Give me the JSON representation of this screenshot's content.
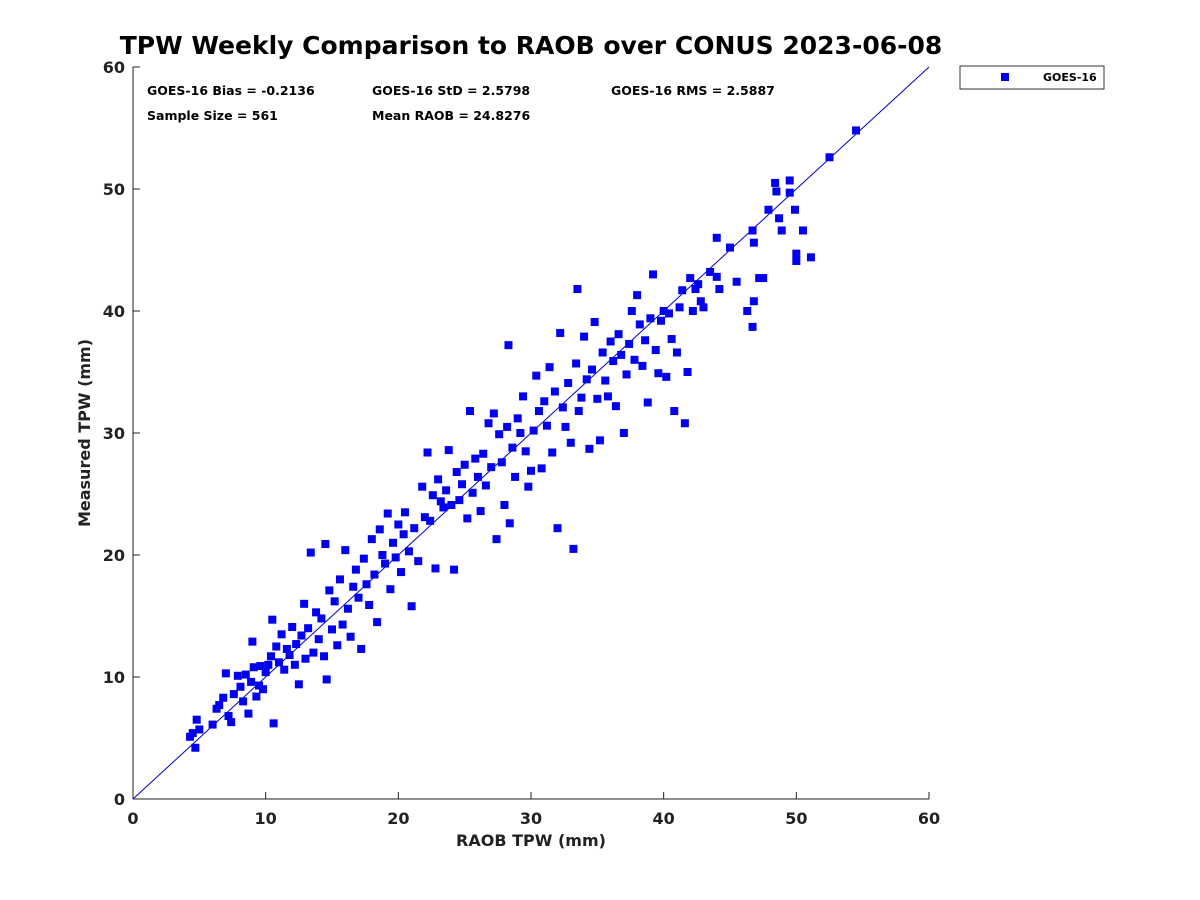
{
  "chart_data": {
    "type": "scatter",
    "title": "TPW Weekly Comparison to RAOB over CONUS 2023-06-08",
    "xlabel": "RAOB TPW (mm)",
    "ylabel": "Measured TPW (mm)",
    "xlim": [
      0,
      60
    ],
    "ylim": [
      0,
      60
    ],
    "xticks": [
      "0",
      "10",
      "20",
      "30",
      "40",
      "50",
      "60"
    ],
    "yticks": [
      "0",
      "10",
      "20",
      "30",
      "40",
      "50",
      "60"
    ],
    "reference_line": "1:1",
    "legend": {
      "position": "outside-top-right",
      "entries": [
        "GOES-16"
      ]
    },
    "stats": {
      "bias": "GOES-16 Bias = -0.2136",
      "std": "GOES-16 StD = 2.5798",
      "rms": "GOES-16 RMS = 2.5887",
      "sample": "Sample Size = 561",
      "mean": "Mean RAOB = 24.8276"
    },
    "colors": {
      "series": "#0000ee",
      "line": "#0000cc"
    },
    "series": [
      {
        "name": "GOES-16",
        "points": [
          [
            4.3,
            5.1
          ],
          [
            4.5,
            5.4
          ],
          [
            4.8,
            6.5
          ],
          [
            5.0,
            5.7
          ],
          [
            4.7,
            4.2
          ],
          [
            6.0,
            6.1
          ],
          [
            6.3,
            7.4
          ],
          [
            6.5,
            7.7
          ],
          [
            6.8,
            8.3
          ],
          [
            7.0,
            10.3
          ],
          [
            7.2,
            6.8
          ],
          [
            7.4,
            6.3
          ],
          [
            7.6,
            8.6
          ],
          [
            7.9,
            10.1
          ],
          [
            8.1,
            9.2
          ],
          [
            8.3,
            8.0
          ],
          [
            8.5,
            10.2
          ],
          [
            8.7,
            7.0
          ],
          [
            8.9,
            9.6
          ],
          [
            9.0,
            12.9
          ],
          [
            9.1,
            10.8
          ],
          [
            9.3,
            8.4
          ],
          [
            9.5,
            9.3
          ],
          [
            9.6,
            10.9
          ],
          [
            9.8,
            9.0
          ],
          [
            10.0,
            10.4
          ],
          [
            10.2,
            11.0
          ],
          [
            10.4,
            11.7
          ],
          [
            10.5,
            14.7
          ],
          [
            10.6,
            6.2
          ],
          [
            10.8,
            12.5
          ],
          [
            11.0,
            11.2
          ],
          [
            11.2,
            13.5
          ],
          [
            11.4,
            10.6
          ],
          [
            11.6,
            12.3
          ],
          [
            11.8,
            11.8
          ],
          [
            12.0,
            14.1
          ],
          [
            12.2,
            11.0
          ],
          [
            12.3,
            12.7
          ],
          [
            12.5,
            9.4
          ],
          [
            12.7,
            13.4
          ],
          [
            12.9,
            16.0
          ],
          [
            13.0,
            11.5
          ],
          [
            13.2,
            14.0
          ],
          [
            13.4,
            20.2
          ],
          [
            13.6,
            12.0
          ],
          [
            13.8,
            15.3
          ],
          [
            14.0,
            13.1
          ],
          [
            14.2,
            14.8
          ],
          [
            14.4,
            11.7
          ],
          [
            14.5,
            20.9
          ],
          [
            14.6,
            9.8
          ],
          [
            14.8,
            17.1
          ],
          [
            15.0,
            13.9
          ],
          [
            15.2,
            16.2
          ],
          [
            15.4,
            12.6
          ],
          [
            15.6,
            18.0
          ],
          [
            15.8,
            14.3
          ],
          [
            16.0,
            20.4
          ],
          [
            16.2,
            15.6
          ],
          [
            16.4,
            13.3
          ],
          [
            16.6,
            17.4
          ],
          [
            16.8,
            18.8
          ],
          [
            17.0,
            16.5
          ],
          [
            17.2,
            12.3
          ],
          [
            17.4,
            19.7
          ],
          [
            17.6,
            17.6
          ],
          [
            17.8,
            15.9
          ],
          [
            18.0,
            21.3
          ],
          [
            18.2,
            18.4
          ],
          [
            18.4,
            14.5
          ],
          [
            18.6,
            22.1
          ],
          [
            18.8,
            20.0
          ],
          [
            19.0,
            19.3
          ],
          [
            19.2,
            23.4
          ],
          [
            19.4,
            17.2
          ],
          [
            19.6,
            21.0
          ],
          [
            19.8,
            19.8
          ],
          [
            20.0,
            22.5
          ],
          [
            20.2,
            18.6
          ],
          [
            20.4,
            21.7
          ],
          [
            20.5,
            23.5
          ],
          [
            20.8,
            20.3
          ],
          [
            21.0,
            15.8
          ],
          [
            21.2,
            22.2
          ],
          [
            21.5,
            19.5
          ],
          [
            21.8,
            25.6
          ],
          [
            22.0,
            23.1
          ],
          [
            22.2,
            28.4
          ],
          [
            22.4,
            22.8
          ],
          [
            22.6,
            24.9
          ],
          [
            22.8,
            18.9
          ],
          [
            23.0,
            26.2
          ],
          [
            23.2,
            24.4
          ],
          [
            23.4,
            23.9
          ],
          [
            23.6,
            25.3
          ],
          [
            23.8,
            28.6
          ],
          [
            24.0,
            24.1
          ],
          [
            24.2,
            18.8
          ],
          [
            24.4,
            26.8
          ],
          [
            24.6,
            24.5
          ],
          [
            24.8,
            25.8
          ],
          [
            25.0,
            27.4
          ],
          [
            25.2,
            23.0
          ],
          [
            25.4,
            31.8
          ],
          [
            25.6,
            25.1
          ],
          [
            25.8,
            27.9
          ],
          [
            26.0,
            26.4
          ],
          [
            26.2,
            23.6
          ],
          [
            26.4,
            28.3
          ],
          [
            26.6,
            25.7
          ],
          [
            26.8,
            30.8
          ],
          [
            27.0,
            27.2
          ],
          [
            27.2,
            31.6
          ],
          [
            27.4,
            21.3
          ],
          [
            27.6,
            29.9
          ],
          [
            27.8,
            27.6
          ],
          [
            28.0,
            24.1
          ],
          [
            28.2,
            30.5
          ],
          [
            28.3,
            37.2
          ],
          [
            28.4,
            22.6
          ],
          [
            28.6,
            28.8
          ],
          [
            28.8,
            26.4
          ],
          [
            29.0,
            31.2
          ],
          [
            29.2,
            30.0
          ],
          [
            29.4,
            33.0
          ],
          [
            29.6,
            28.5
          ],
          [
            29.8,
            25.6
          ],
          [
            30.0,
            26.9
          ],
          [
            30.2,
            30.2
          ],
          [
            30.4,
            34.7
          ],
          [
            30.6,
            31.8
          ],
          [
            30.8,
            27.1
          ],
          [
            31.0,
            32.6
          ],
          [
            31.2,
            30.6
          ],
          [
            31.4,
            35.4
          ],
          [
            31.6,
            28.4
          ],
          [
            31.8,
            33.4
          ],
          [
            32.0,
            22.2
          ],
          [
            32.2,
            38.2
          ],
          [
            32.4,
            32.1
          ],
          [
            32.6,
            30.5
          ],
          [
            32.8,
            34.1
          ],
          [
            33.0,
            29.2
          ],
          [
            33.2,
            20.5
          ],
          [
            33.4,
            35.7
          ],
          [
            33.5,
            41.8
          ],
          [
            33.6,
            31.8
          ],
          [
            33.8,
            32.9
          ],
          [
            34.0,
            37.9
          ],
          [
            34.2,
            34.4
          ],
          [
            34.4,
            28.7
          ],
          [
            34.6,
            35.2
          ],
          [
            34.8,
            39.1
          ],
          [
            35.0,
            32.8
          ],
          [
            35.2,
            29.4
          ],
          [
            35.4,
            36.6
          ],
          [
            35.6,
            34.3
          ],
          [
            35.8,
            33.0
          ],
          [
            36.0,
            37.5
          ],
          [
            36.2,
            35.9
          ],
          [
            36.4,
            32.2
          ],
          [
            36.6,
            38.1
          ],
          [
            36.8,
            36.4
          ],
          [
            37.0,
            30.0
          ],
          [
            37.2,
            34.8
          ],
          [
            37.4,
            37.3
          ],
          [
            37.6,
            40.0
          ],
          [
            37.8,
            36.0
          ],
          [
            38.0,
            41.3
          ],
          [
            38.2,
            38.9
          ],
          [
            38.4,
            35.5
          ],
          [
            38.6,
            37.6
          ],
          [
            38.8,
            32.5
          ],
          [
            39.0,
            39.4
          ],
          [
            39.2,
            43.0
          ],
          [
            39.4,
            36.8
          ],
          [
            39.6,
            34.9
          ],
          [
            39.8,
            39.2
          ],
          [
            40.0,
            40.0
          ],
          [
            40.2,
            34.6
          ],
          [
            40.4,
            39.8
          ],
          [
            40.6,
            37.7
          ],
          [
            40.8,
            31.8
          ],
          [
            41.0,
            36.6
          ],
          [
            41.2,
            40.3
          ],
          [
            41.4,
            41.7
          ],
          [
            41.6,
            30.8
          ],
          [
            41.8,
            35.0
          ],
          [
            42.0,
            42.7
          ],
          [
            42.2,
            40.0
          ],
          [
            42.4,
            41.8
          ],
          [
            42.6,
            42.2
          ],
          [
            42.8,
            40.8
          ],
          [
            43.0,
            40.3
          ],
          [
            43.5,
            43.2
          ],
          [
            44.0,
            46.0
          ],
          [
            44.2,
            41.8
          ],
          [
            44.0,
            42.8
          ],
          [
            45.0,
            45.2
          ],
          [
            45.5,
            42.4
          ],
          [
            46.3,
            40.0
          ],
          [
            46.7,
            46.6
          ],
          [
            46.8,
            45.6
          ],
          [
            46.7,
            38.7
          ],
          [
            46.8,
            40.8
          ],
          [
            47.2,
            42.7
          ],
          [
            47.5,
            42.7
          ],
          [
            47.9,
            48.3
          ],
          [
            48.4,
            50.5
          ],
          [
            48.5,
            49.8
          ],
          [
            48.7,
            47.6
          ],
          [
            48.9,
            46.6
          ],
          [
            49.5,
            50.7
          ],
          [
            49.5,
            49.7
          ],
          [
            49.9,
            48.3
          ],
          [
            50.0,
            44.7
          ],
          [
            50.0,
            44.1
          ],
          [
            50.5,
            46.6
          ],
          [
            51.1,
            44.4
          ],
          [
            52.5,
            52.6
          ],
          [
            54.5,
            54.8
          ]
        ]
      }
    ]
  }
}
